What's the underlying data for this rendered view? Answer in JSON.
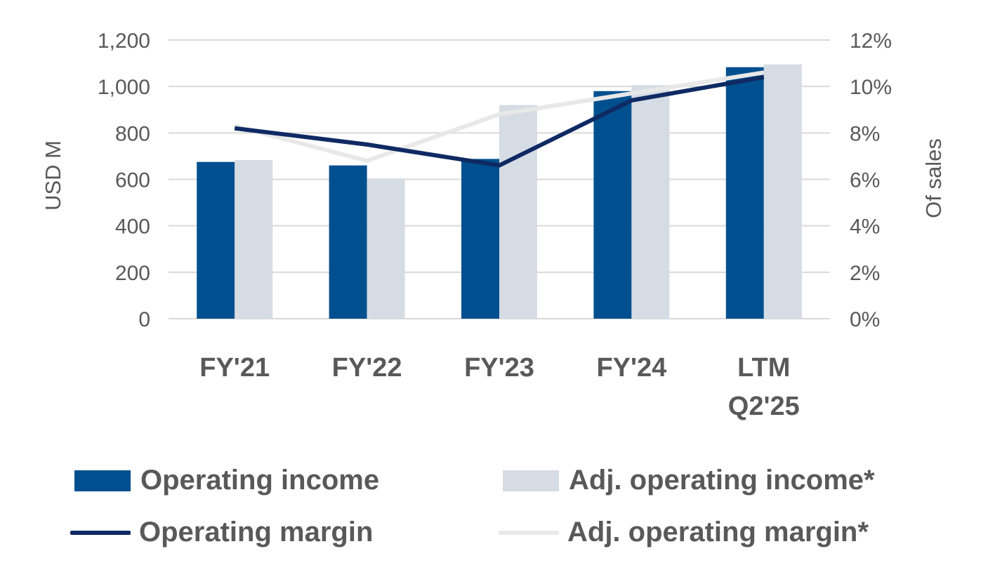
{
  "chart_data": {
    "type": "bar",
    "categories": [
      "FY'21",
      "FY'22",
      "FY'23",
      "FY'24",
      "LTM Q2'25"
    ],
    "category_lines": [
      [
        "FY'21"
      ],
      [
        "FY'22"
      ],
      [
        "FY'23"
      ],
      [
        "FY'24"
      ],
      [
        "LTM",
        "Q2'25"
      ]
    ],
    "series": [
      {
        "name": "Operating income",
        "kind": "bar",
        "axis": "left",
        "color": "#00508F",
        "values": [
          675,
          660,
          688,
          980,
          1083
        ]
      },
      {
        "name": "Adj. operating income*",
        "kind": "bar",
        "axis": "left",
        "color": "#D5DCE4",
        "values": [
          683,
          604,
          920,
          1006,
          1095
        ]
      },
      {
        "name": "Operating margin",
        "kind": "line",
        "axis": "right",
        "color": "#0F2A63",
        "values": [
          8.2,
          7.5,
          6.6,
          9.4,
          10.4
        ]
      },
      {
        "name": "Adj. operating margin*",
        "kind": "line",
        "axis": "right",
        "color": "#E8E8E8",
        "values": [
          8.3,
          6.8,
          8.8,
          9.7,
          10.6
        ]
      }
    ],
    "ylabel": "USD M",
    "y2label": "Of sales",
    "ylim": [
      0,
      1200
    ],
    "y2lim": [
      0,
      12
    ],
    "yticks": [
      "0",
      "200",
      "400",
      "600",
      "800",
      "1,000",
      "1,200"
    ],
    "y2ticks": [
      "0%",
      "2%",
      "4%",
      "6%",
      "8%",
      "10%",
      "12%"
    ],
    "grid": true,
    "legend_position": "bottom"
  }
}
